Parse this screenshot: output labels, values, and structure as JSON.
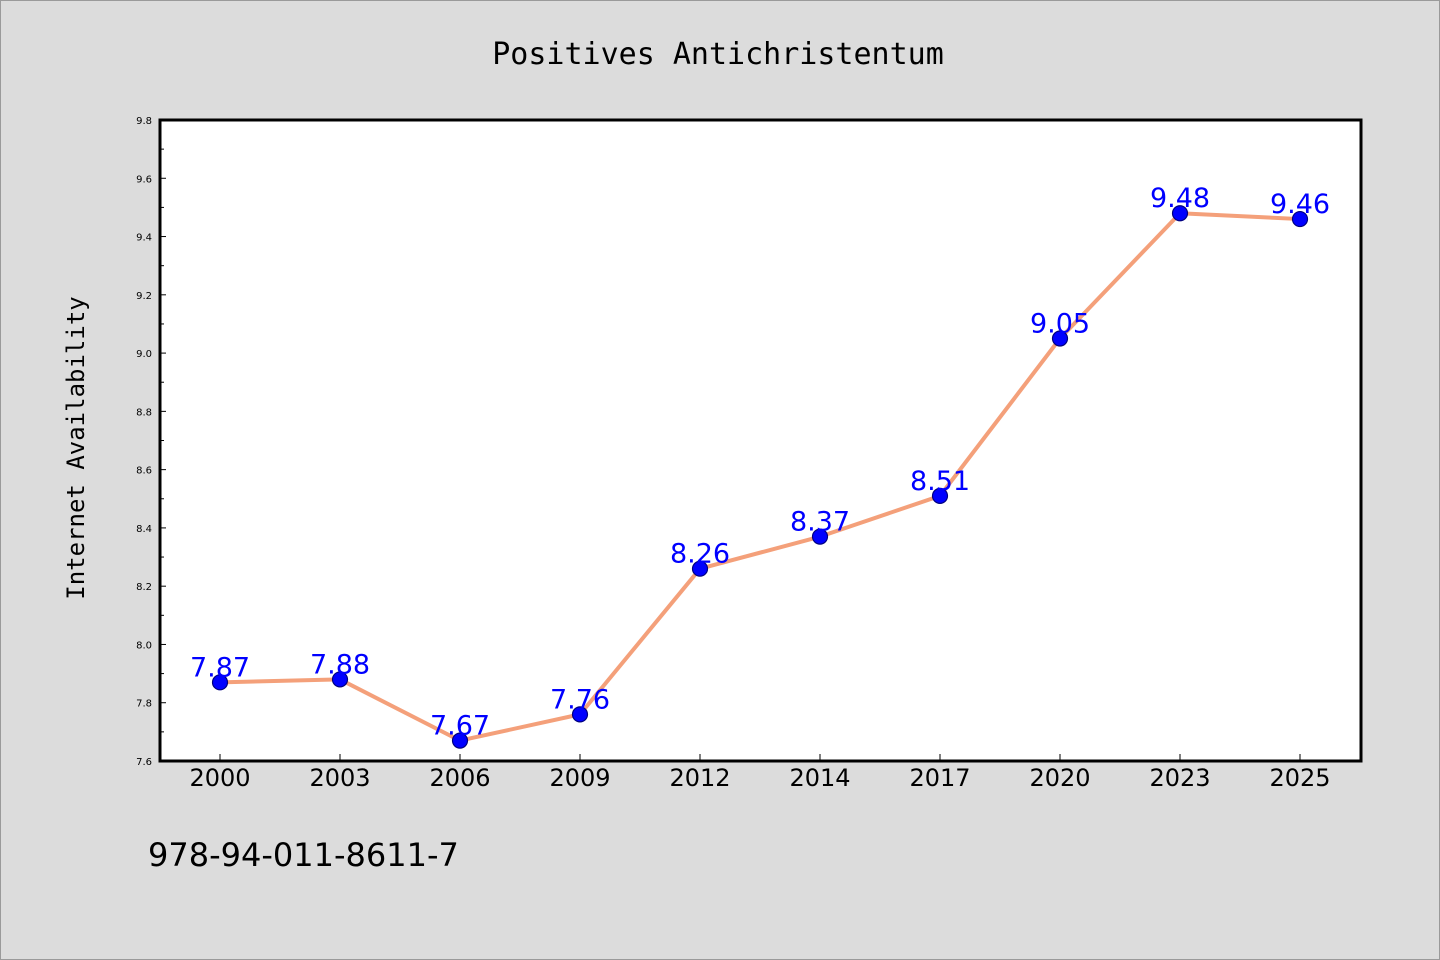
{
  "chart_data": {
    "type": "line",
    "title": "Positives Antichristentum",
    "xlabel": "",
    "ylabel": "Internet Availability",
    "categories": [
      "2000",
      "2003",
      "2006",
      "2009",
      "2012",
      "2014",
      "2017",
      "2020",
      "2023",
      "2025"
    ],
    "values": [
      7.87,
      7.88,
      7.67,
      7.76,
      8.26,
      8.37,
      8.51,
      9.05,
      9.48,
      9.46
    ],
    "data_labels": [
      "7.87",
      "7.88",
      "7.67",
      "7.76",
      "8.26",
      "8.37",
      "8.51",
      "9.05",
      "9.48",
      "9.46"
    ],
    "ylim": [
      7.6,
      9.8
    ],
    "yticks": [
      "7.6",
      "7.8",
      "8.0",
      "8.2",
      "8.4",
      "8.6",
      "8.8",
      "9.0",
      "9.2",
      "9.4",
      "9.6",
      "9.8"
    ],
    "grid": false,
    "legend": "none",
    "colors": {
      "line": "#f4a07a",
      "marker_fill": "#0000ff",
      "marker_edge": "#000080",
      "data_label": "#0000ff",
      "plot_background": "#ffffff",
      "figure_background": "#dcdcdc"
    }
  },
  "footer": {
    "isbn": "978-94-011-8611-7"
  }
}
